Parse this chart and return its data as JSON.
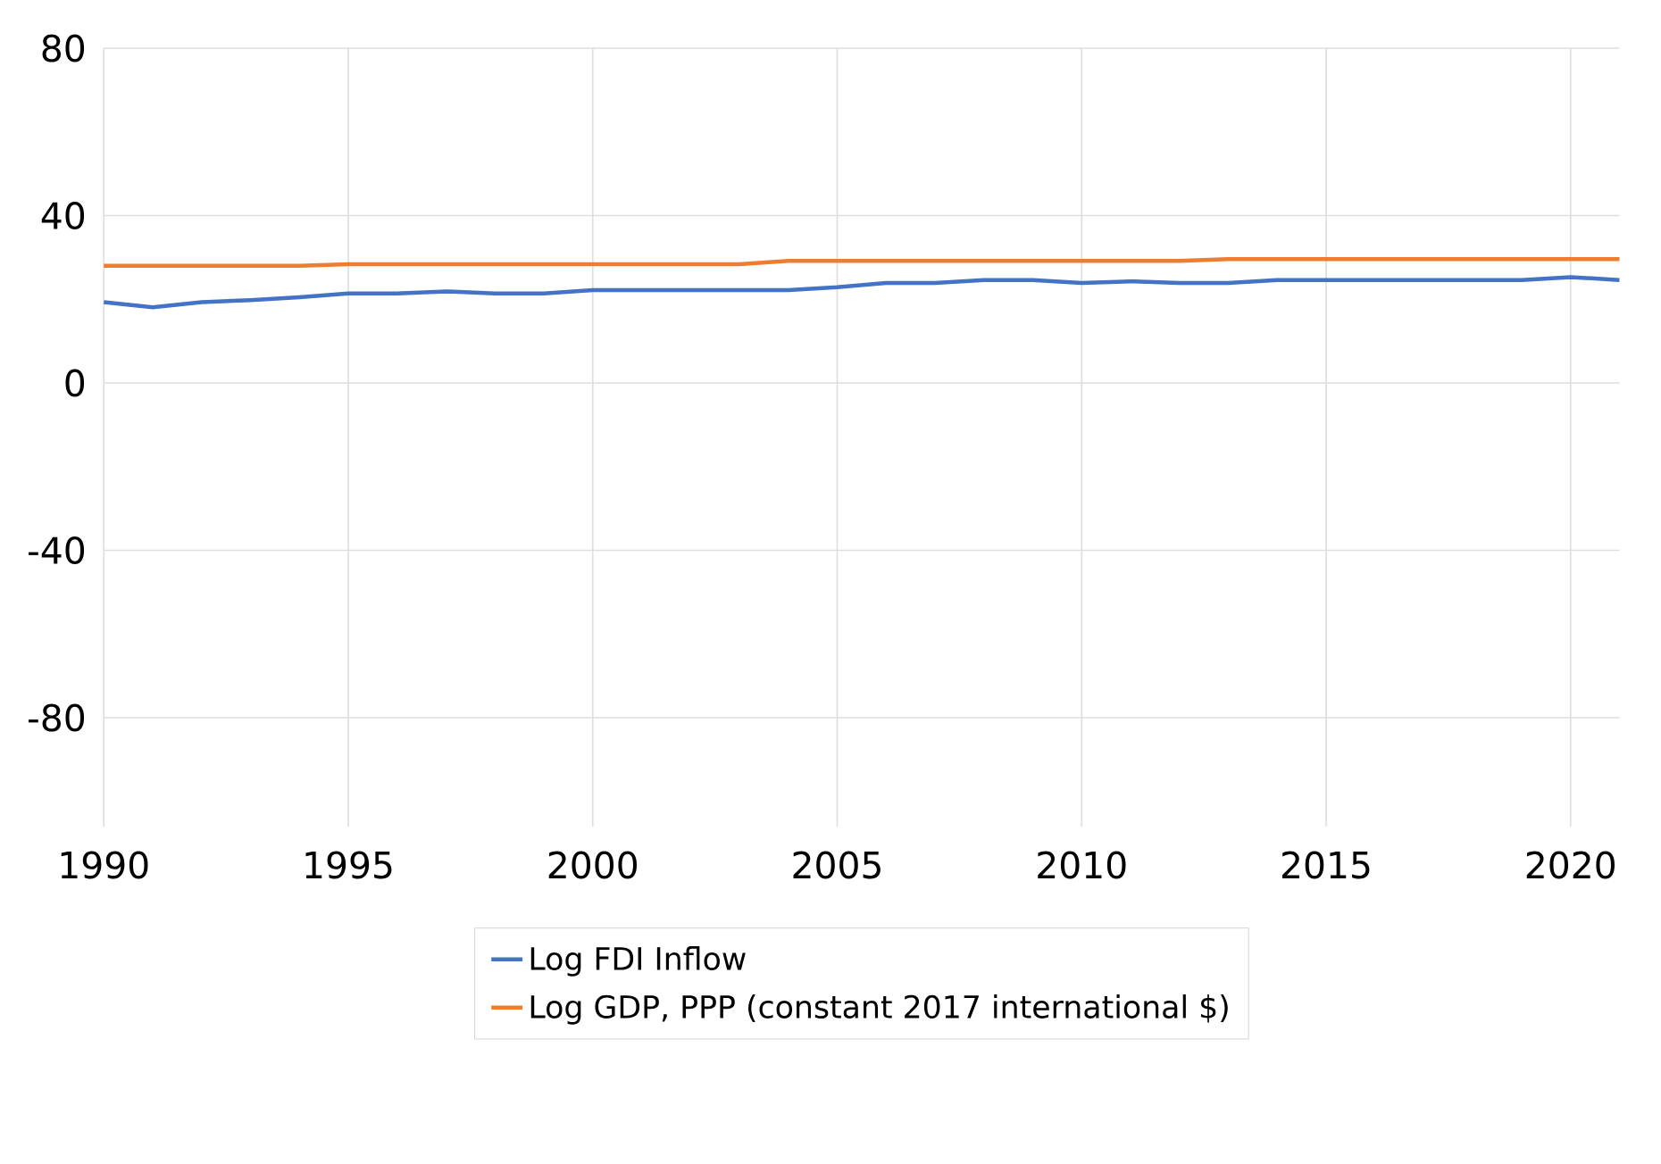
{
  "chart_data": {
    "type": "line",
    "x": [
      1990,
      1991,
      1992,
      1993,
      1994,
      1995,
      1996,
      1997,
      1998,
      1999,
      2000,
      2001,
      2002,
      2003,
      2004,
      2005,
      2006,
      2007,
      2008,
      2009,
      2010,
      2011,
      2012,
      2013,
      2014,
      2015,
      2016,
      2017,
      2018,
      2019,
      2020,
      2021
    ],
    "series": [
      {
        "name": "Log FDI Inflow",
        "color": "#4472c4",
        "values": [
          19.3,
          18.1,
          19.3,
          19.8,
          20.5,
          21.4,
          21.4,
          21.9,
          21.4,
          21.4,
          22.2,
          22.2,
          22.2,
          22.2,
          22.2,
          22.9,
          23.9,
          23.9,
          24.6,
          24.6,
          23.9,
          24.3,
          23.9,
          23.9,
          24.6,
          24.6,
          24.6,
          24.6,
          24.6,
          24.6,
          25.3,
          24.6
        ]
      },
      {
        "name": "Log GDP, PPP (constant 2017 international $)",
        "color": "#ed7d31",
        "values": [
          28.0,
          28.0,
          28.0,
          28.0,
          28.0,
          28.4,
          28.4,
          28.4,
          28.4,
          28.4,
          28.4,
          28.4,
          28.4,
          28.4,
          29.2,
          29.2,
          29.2,
          29.2,
          29.2,
          29.2,
          29.2,
          29.2,
          29.2,
          29.6,
          29.6,
          29.6,
          29.6,
          29.6,
          29.6,
          29.6,
          29.6,
          29.6
        ]
      }
    ],
    "xlim": [
      1990,
      2021
    ],
    "ylim": [
      -106,
      80
    ],
    "xticks": [
      1990,
      1995,
      2000,
      2005,
      2010,
      2015,
      2020
    ],
    "yticks": [
      -80,
      -40,
      0,
      40,
      80
    ],
    "grid": true,
    "legend": "bottom",
    "marker": "none",
    "line_style": "solid"
  }
}
